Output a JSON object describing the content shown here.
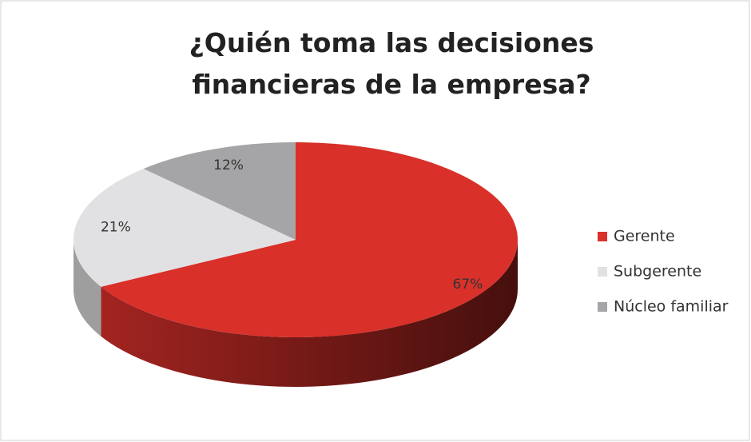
{
  "chart_data": {
    "type": "pie",
    "title": "¿Quién toma las decisiones financieras de la empresa?",
    "categories": [
      "Gerente",
      "Subgerente",
      "Núcleo familiar"
    ],
    "values": [
      67,
      21,
      12
    ],
    "value_labels": [
      "67%",
      "21%",
      "12%"
    ],
    "colors": [
      "#d9302a",
      "#e1e1e3",
      "#a5a5a7"
    ],
    "legend": "right"
  }
}
